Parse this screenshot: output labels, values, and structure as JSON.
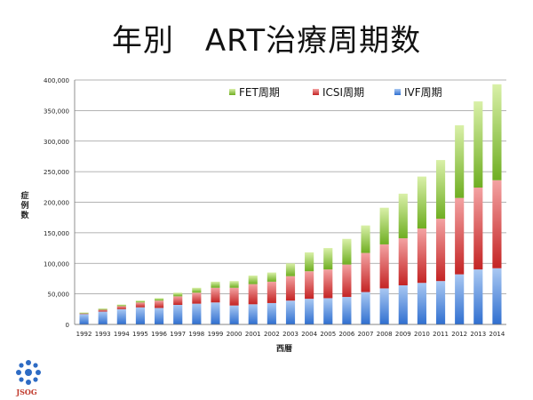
{
  "title": "年別　ART治療周期数",
  "logo_text": "JSOG",
  "colors": {
    "ivf": "#4d86d6",
    "icsi": "#d43a3a",
    "fet": "#8cc63e",
    "grid": "#9a9a9a"
  },
  "chart_data": {
    "type": "bar",
    "stacked": true,
    "xlabel": "西暦",
    "ylabel": "症例数",
    "ylim": [
      0,
      400000
    ],
    "yticks": [
      "0",
      "50,000",
      "100,000",
      "150,000",
      "200,000",
      "250,000",
      "300,000",
      "350,000",
      "400,000"
    ],
    "grid": true,
    "legend_position": "top-right",
    "categories": [
      "1992",
      "1993",
      "1994",
      "1995",
      "1996",
      "1997",
      "1998",
      "1999",
      "2000",
      "2001",
      "2002",
      "2003",
      "2004",
      "2005",
      "2006",
      "2007",
      "2008",
      "2009",
      "2010",
      "2011",
      "2012",
      "2013",
      "2014"
    ],
    "series": [
      {
        "name": "IVF周期",
        "key": "ivf",
        "values": [
          17000,
          21000,
          25000,
          28000,
          27000,
          32000,
          34000,
          36000,
          31000,
          33000,
          35000,
          39000,
          42000,
          43000,
          45000,
          53000,
          59000,
          64000,
          68000,
          71000,
          82000,
          90000,
          92000
        ]
      },
      {
        "name": "ICSI周期",
        "key": "icsi",
        "values": [
          1000,
          3000,
          5000,
          8000,
          12000,
          14000,
          18000,
          24000,
          29000,
          33000,
          35000,
          40000,
          45000,
          47000,
          53000,
          64000,
          72000,
          77000,
          89000,
          102000,
          125000,
          134000,
          144000
        ]
      },
      {
        "name": "FET周期",
        "key": "fet",
        "values": [
          1500,
          2000,
          2500,
          3000,
          4000,
          6000,
          8000,
          10000,
          11000,
          14000,
          15000,
          21000,
          31000,
          35000,
          42000,
          45000,
          60000,
          73000,
          85000,
          96000,
          119000,
          141000,
          157000
        ]
      }
    ],
    "legend_order": [
      "fet",
      "icsi",
      "ivf"
    ]
  }
}
